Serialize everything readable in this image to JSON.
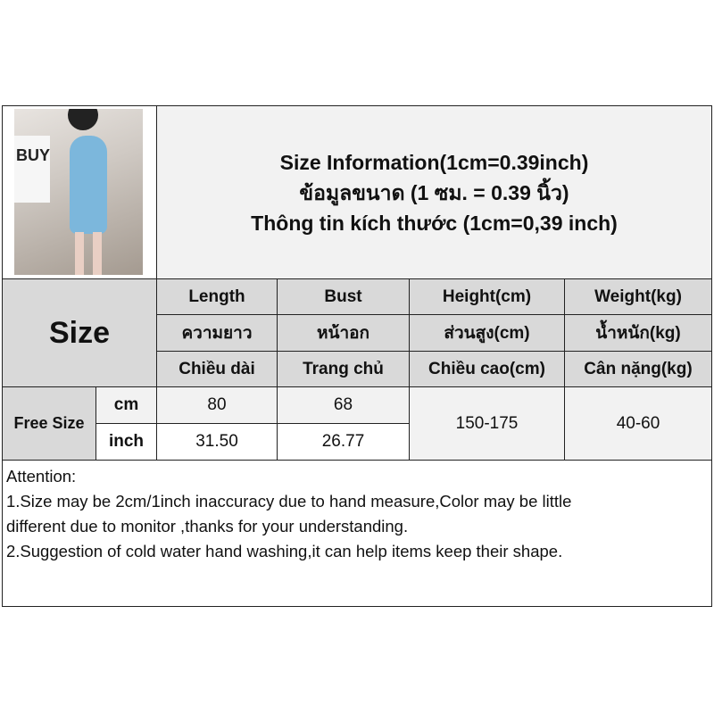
{
  "header": {
    "title_lines": [
      "Size Information(1cm=0.39inch)",
      "ข้อมูลขนาด (1 ซม. = 0.39 นิ้ว)",
      "Thông tin kích thước (1cm=0,39 inch)"
    ],
    "photo_text": "BUY"
  },
  "table": {
    "size_label": "Size",
    "columns": [
      {
        "en": "Length",
        "th": "ความยาว",
        "vi": "Chiều dài"
      },
      {
        "en": "Bust",
        "th": "หน้าอก",
        "vi": "Trang chủ"
      },
      {
        "en": "Height(cm)",
        "th": "ส่วนสูง(cm)",
        "vi": "Chiều cao(cm)"
      },
      {
        "en": "Weight(kg)",
        "th": "น้ำหนัก(kg)",
        "vi": "Cân nặng(kg)"
      }
    ],
    "row": {
      "size": "Free Size",
      "units": [
        "cm",
        "inch"
      ],
      "length": [
        "80",
        "31.50"
      ],
      "bust": [
        "68",
        "26.77"
      ],
      "height": "150-175",
      "weight": "40-60"
    }
  },
  "attention": {
    "lines": [
      "Attention:",
      "1.Size may be 2cm/1inch inaccuracy due to hand measure,Color may be little",
      "different due to monitor ,thanks for your understanding.",
      "2.Suggestion of cold water hand washing,it can help items keep their shape."
    ]
  },
  "colors": {
    "header_gray": "#d9d9d9",
    "light_gray": "#f2f2f2",
    "border": "#222222"
  }
}
